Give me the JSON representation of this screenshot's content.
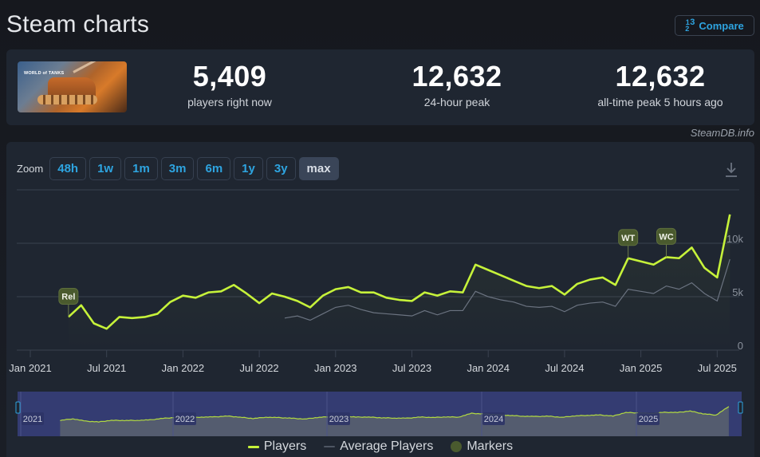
{
  "header": {
    "title": "Steam charts",
    "compare_label": "Compare",
    "compare_icon": "fraction-icon"
  },
  "stats": {
    "game_image_alt": "World of Tanks",
    "game_logo_text": "WORLD of TANKS",
    "current": {
      "value": "5,409",
      "label": "players right now"
    },
    "peak_24h": {
      "value": "12,632",
      "label": "24-hour peak"
    },
    "all_time": {
      "value": "12,632",
      "label": "all-time peak 5 hours ago"
    }
  },
  "watermark": "SteamDB.info",
  "zoom": {
    "label": "Zoom",
    "options": [
      "48h",
      "1w",
      "1m",
      "3m",
      "6m",
      "1y",
      "3y",
      "max"
    ],
    "active": "max"
  },
  "legend": {
    "players": "Players",
    "average": "Average Players",
    "markers": "Markers"
  },
  "colors": {
    "players": "#c6f23a",
    "average": "#6b7380",
    "marker": "#4a5a2e",
    "accent": "#2ea4e0",
    "navigator_bg": "#343c72"
  },
  "chart_data": {
    "type": "line",
    "title": "Steam charts",
    "xlabel": "",
    "ylabel": "",
    "ylim": [
      0,
      15000
    ],
    "y_ticks": [
      "0",
      "5k",
      "10k"
    ],
    "x_ticks": [
      "Jan 2021",
      "Jul 2021",
      "Jan 2022",
      "Jul 2022",
      "Jan 2023",
      "Jul 2023",
      "Jan 2024",
      "Jul 2024",
      "Jan 2025",
      "Jul 2025"
    ],
    "grid": true,
    "legend_position": "bottom",
    "x": [
      "2021-04",
      "2021-05",
      "2021-06",
      "2021-07",
      "2021-08",
      "2021-09",
      "2021-10",
      "2021-11",
      "2021-12",
      "2022-01",
      "2022-02",
      "2022-03",
      "2022-04",
      "2022-05",
      "2022-06",
      "2022-07",
      "2022-08",
      "2022-09",
      "2022-10",
      "2022-11",
      "2022-12",
      "2023-01",
      "2023-02",
      "2023-03",
      "2023-04",
      "2023-05",
      "2023-06",
      "2023-07",
      "2023-08",
      "2023-09",
      "2023-10",
      "2023-11",
      "2023-12",
      "2024-01",
      "2024-02",
      "2024-03",
      "2024-04",
      "2024-05",
      "2024-06",
      "2024-07",
      "2024-08",
      "2024-09",
      "2024-10",
      "2024-11",
      "2024-12",
      "2025-01",
      "2025-02",
      "2025-03",
      "2025-04",
      "2025-05",
      "2025-06",
      "2025-07",
      "2025-08"
    ],
    "series": [
      {
        "name": "Players",
        "values": [
          3100,
          4200,
          2500,
          2000,
          3100,
          3000,
          3100,
          3400,
          4500,
          5100,
          4900,
          5400,
          5500,
          6100,
          5300,
          4400,
          5300,
          5000,
          4600,
          4000,
          5100,
          5700,
          5900,
          5400,
          5400,
          4900,
          4700,
          4600,
          5400,
          5100,
          5500,
          5400,
          8000,
          7500,
          7000,
          6500,
          6000,
          5800,
          6000,
          5200,
          6200,
          6600,
          6800,
          6100,
          8600,
          8300,
          8000,
          8700,
          8600,
          9600,
          7700,
          6800,
          12700
        ]
      },
      {
        "name": "Average Players",
        "values": [
          null,
          null,
          null,
          null,
          null,
          null,
          null,
          null,
          null,
          null,
          null,
          null,
          null,
          null,
          null,
          null,
          null,
          3000,
          3200,
          2800,
          3400,
          4000,
          4200,
          3800,
          3500,
          3400,
          3300,
          3200,
          3700,
          3300,
          3700,
          3700,
          5500,
          5000,
          4700,
          4500,
          4100,
          4000,
          4100,
          3600,
          4200,
          4400,
          4500,
          4100,
          5700,
          5500,
          5300,
          6000,
          5700,
          6300,
          5300,
          4600,
          8500
        ]
      }
    ],
    "markers": [
      {
        "label": "Rel",
        "x": "2021-04"
      },
      {
        "label": "WT",
        "x": "2024-12"
      },
      {
        "label": "WC",
        "x": "2025-03"
      }
    ],
    "navigator": {
      "labels": [
        "2021",
        "2022",
        "2023",
        "2024",
        "2025"
      ]
    }
  }
}
